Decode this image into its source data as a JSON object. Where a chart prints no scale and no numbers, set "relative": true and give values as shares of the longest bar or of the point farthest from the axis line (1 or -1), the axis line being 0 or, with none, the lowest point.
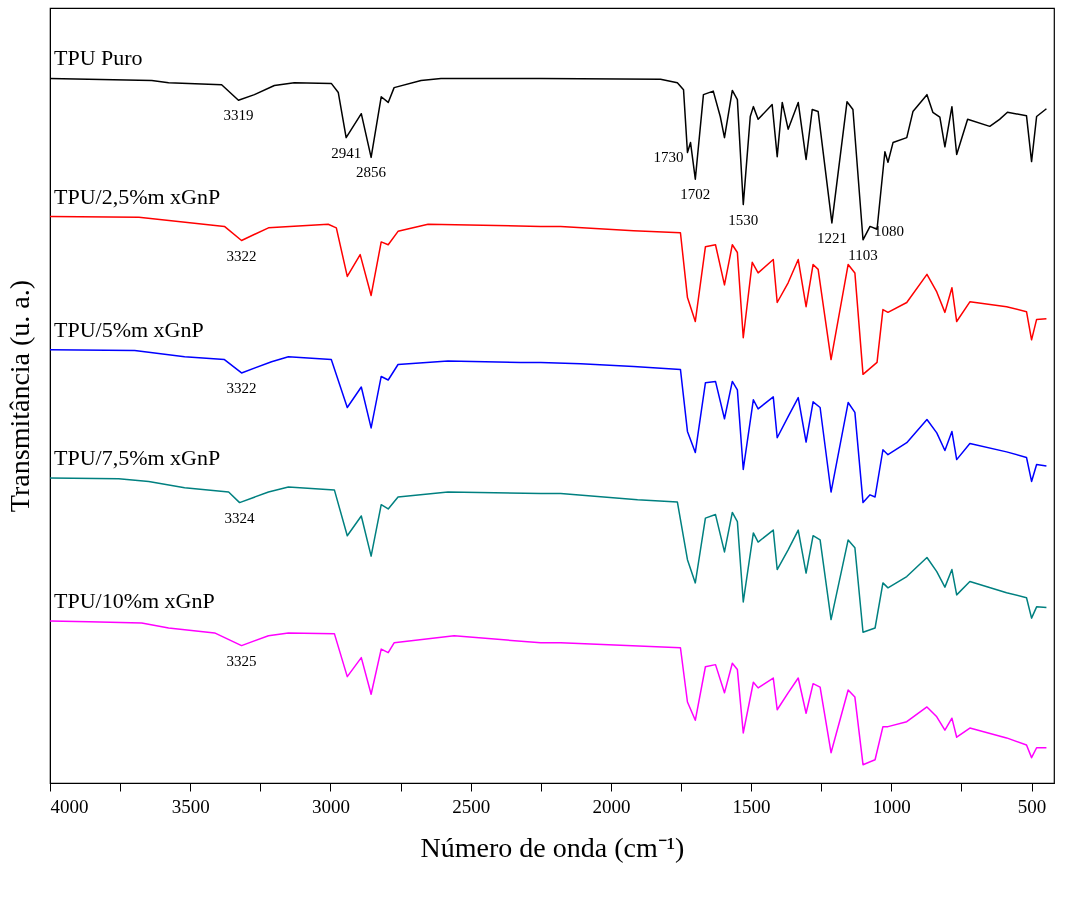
{
  "chart_data": {
    "type": "line",
    "relative": true,
    "xlabel": "Número de onda (cm⁻¹)",
    "ylabel": "Transmitância (u. a.)",
    "xlim": [
      4000,
      420
    ],
    "xticks": [
      4000,
      {
        "value": 3750,
        "label": null
      },
      3500,
      {
        "value": 3250,
        "label": null
      },
      3000,
      {
        "value": 2750,
        "label": null
      },
      2500,
      {
        "value": 2250,
        "label": null
      },
      2000,
      {
        "value": 1750,
        "label": null
      },
      1500,
      {
        "value": 1250,
        "label": null
      },
      1000,
      {
        "value": 750,
        "label": null
      },
      500
    ],
    "series": [
      {
        "name": "TPU Puro",
        "color": "#000000",
        "x": [
          4000,
          3637,
          3577,
          3388,
          3328,
          3271,
          3200,
          3129,
          2997,
          2972,
          2944,
          2890,
          2855,
          2819,
          2794,
          2773,
          2677,
          2606,
          2250,
          1823,
          1763,
          1741,
          1727,
          1716,
          1699,
          1670,
          1635,
          1610,
          1595,
          1567,
          1549,
          1528,
          1503,
          1492,
          1475,
          1425,
          1407,
          1389,
          1368,
          1332,
          1304,
          1282,
          1261,
          1212,
          1158,
          1137,
          1101,
          1076,
          1051,
          1023,
          1012,
          994,
          945,
          923,
          873,
          852,
          827,
          809,
          784,
          767,
          728,
          649,
          614,
          586,
          518,
          500,
          482,
          447
        ],
        "values": [
          1.0,
          0.997,
          0.994,
          0.991,
          0.969,
          0.977,
          0.99,
          0.994,
          0.993,
          0.98,
          0.916,
          0.95,
          0.888,
          0.974,
          0.966,
          0.987,
          0.997,
          1.0,
          1.0,
          0.999,
          0.994,
          0.984,
          0.895,
          0.909,
          0.857,
          0.977,
          0.982,
          0.946,
          0.916,
          0.983,
          0.97,
          0.821,
          0.946,
          0.96,
          0.942,
          0.963,
          0.889,
          0.966,
          0.928,
          0.966,
          0.885,
          0.956,
          0.953,
          0.795,
          0.967,
          0.956,
          0.771,
          0.79,
          0.786,
          0.896,
          0.881,
          0.909,
          0.916,
          0.953,
          0.977,
          0.952,
          0.945,
          0.903,
          0.96,
          0.892,
          0.942,
          0.932,
          0.942,
          0.952,
          0.947,
          0.882,
          0.946,
          0.957
        ]
      },
      {
        "name": "TPU/2,5%m xGnP",
        "color": "#ff0000",
        "x": [
          4000,
          3683,
          3378,
          3317,
          3221,
          3008,
          2979,
          2940,
          2894,
          2855,
          2819,
          2794,
          2759,
          2652,
          2250,
          2179,
          1919,
          1752,
          1727,
          1699,
          1663,
          1627,
          1595,
          1567,
          1549,
          1528,
          1496,
          1475,
          1421,
          1407,
          1368,
          1332,
          1304,
          1279,
          1261,
          1215,
          1154,
          1130,
          1101,
          1051,
          1030,
          1012,
          945,
          873,
          838,
          809,
          784,
          767,
          720,
          589,
          518,
          500,
          482,
          447
        ],
        "values": [
          0.804,
          0.803,
          0.79,
          0.77,
          0.788,
          0.793,
          0.788,
          0.719,
          0.75,
          0.692,
          0.768,
          0.764,
          0.783,
          0.793,
          0.79,
          0.79,
          0.784,
          0.781,
          0.689,
          0.655,
          0.761,
          0.764,
          0.707,
          0.764,
          0.753,
          0.632,
          0.739,
          0.724,
          0.743,
          0.682,
          0.71,
          0.743,
          0.676,
          0.736,
          0.729,
          0.601,
          0.736,
          0.724,
          0.58,
          0.597,
          0.672,
          0.668,
          0.682,
          0.722,
          0.697,
          0.668,
          0.703,
          0.655,
          0.683,
          0.676,
          0.669,
          0.629,
          0.658,
          0.659
        ]
      },
      {
        "name": "TPU/5%m xGnP",
        "color": "#0000ff",
        "x": [
          4000,
          3698,
          3520,
          3378,
          3317,
          3210,
          3150,
          2997,
          2940,
          2890,
          2855,
          2819,
          2794,
          2759,
          2581,
          2321,
          2250,
          2108,
          1919,
          1752,
          1727,
          1699,
          1663,
          1627,
          1595,
          1567,
          1549,
          1528,
          1492,
          1475,
          1421,
          1407,
          1368,
          1332,
          1304,
          1279,
          1254,
          1215,
          1154,
          1130,
          1101,
          1076,
          1058,
          1030,
          1012,
          945,
          873,
          838,
          809,
          784,
          767,
          720,
          589,
          518,
          500,
          482,
          447
        ],
        "values": [
          0.615,
          0.614,
          0.605,
          0.601,
          0.582,
          0.598,
          0.605,
          0.601,
          0.533,
          0.562,
          0.504,
          0.577,
          0.572,
          0.594,
          0.599,
          0.597,
          0.597,
          0.595,
          0.591,
          0.587,
          0.499,
          0.469,
          0.568,
          0.57,
          0.517,
          0.57,
          0.558,
          0.445,
          0.544,
          0.531,
          0.548,
          0.49,
          0.52,
          0.547,
          0.484,
          0.541,
          0.533,
          0.413,
          0.54,
          0.526,
          0.398,
          0.409,
          0.406,
          0.473,
          0.466,
          0.483,
          0.516,
          0.497,
          0.472,
          0.499,
          0.459,
          0.482,
          0.47,
          0.462,
          0.428,
          0.452,
          0.45
        ]
      },
      {
        "name": "TPU/7,5%m xGnP",
        "color": "#008080",
        "x": [
          4000,
          3755,
          3648,
          3520,
          3363,
          3324,
          3221,
          3150,
          2986,
          2940,
          2890,
          2855,
          2819,
          2794,
          2759,
          2581,
          2250,
          2179,
          1905,
          1763,
          1727,
          1699,
          1663,
          1627,
          1595,
          1567,
          1549,
          1528,
          1492,
          1475,
          1421,
          1407,
          1368,
          1332,
          1304,
          1279,
          1254,
          1215,
          1154,
          1130,
          1101,
          1058,
          1030,
          1012,
          945,
          873,
          838,
          809,
          784,
          767,
          720,
          589,
          518,
          500,
          482,
          447
        ],
        "values": [
          0.433,
          0.432,
          0.428,
          0.419,
          0.413,
          0.398,
          0.413,
          0.42,
          0.416,
          0.351,
          0.379,
          0.322,
          0.395,
          0.389,
          0.406,
          0.413,
          0.411,
          0.411,
          0.402,
          0.399,
          0.317,
          0.284,
          0.376,
          0.381,
          0.328,
          0.384,
          0.371,
          0.257,
          0.355,
          0.342,
          0.359,
          0.303,
          0.331,
          0.359,
          0.298,
          0.351,
          0.345,
          0.232,
          0.345,
          0.334,
          0.214,
          0.22,
          0.284,
          0.277,
          0.293,
          0.32,
          0.3,
          0.278,
          0.303,
          0.267,
          0.286,
          0.27,
          0.263,
          0.234,
          0.25,
          0.249
        ]
      },
      {
        "name": "TPU/10%m xGnP",
        "color": "#ff00ff",
        "x": [
          4000,
          3861,
          3673,
          3577,
          3413,
          3317,
          3221,
          3150,
          2986,
          2940,
          2890,
          2855,
          2819,
          2794,
          2773,
          2559,
          2250,
          2179,
          1752,
          1727,
          1699,
          1663,
          1627,
          1595,
          1567,
          1549,
          1528,
          1492,
          1475,
          1421,
          1407,
          1368,
          1332,
          1304,
          1279,
          1254,
          1215,
          1154,
          1130,
          1101,
          1058,
          1030,
          1012,
          945,
          873,
          838,
          809,
          784,
          767,
          720,
          589,
          518,
          500,
          482,
          447
        ],
        "values": [
          0.23,
          0.229,
          0.227,
          0.22,
          0.213,
          0.195,
          0.209,
          0.213,
          0.212,
          0.151,
          0.178,
          0.126,
          0.19,
          0.185,
          0.199,
          0.209,
          0.199,
          0.199,
          0.192,
          0.115,
          0.089,
          0.165,
          0.168,
          0.128,
          0.17,
          0.161,
          0.071,
          0.143,
          0.135,
          0.149,
          0.104,
          0.128,
          0.149,
          0.099,
          0.141,
          0.136,
          0.043,
          0.132,
          0.122,
          0.026,
          0.033,
          0.08,
          0.08,
          0.087,
          0.108,
          0.094,
          0.075,
          0.092,
          0.065,
          0.078,
          0.064,
          0.054,
          0.036,
          0.05,
          0.05
        ]
      }
    ],
    "annotations": [
      {
        "text": "3319",
        "x": 3328,
        "y": 0.969
      },
      {
        "text": "2941",
        "x": 2944,
        "y": 0.916
      },
      {
        "text": "2856",
        "x": 2855,
        "y": 0.888
      },
      {
        "text": "1730",
        "x": 1727,
        "y": 0.895
      },
      {
        "text": "1702",
        "x": 1699,
        "y": 0.857
      },
      {
        "text": "1530",
        "x": 1528,
        "y": 0.821
      },
      {
        "text": "1221",
        "x": 1212,
        "y": 0.795
      },
      {
        "text": "1103",
        "x": 1101,
        "y": 0.771
      },
      {
        "text": "1080",
        "x": 1076,
        "y": 0.79
      },
      {
        "text": "3322",
        "x": 3317,
        "y": 0.77
      },
      {
        "text": "3322",
        "x": 3317,
        "y": 0.582
      },
      {
        "text": "3324",
        "x": 3324,
        "y": 0.398
      },
      {
        "text": "3325",
        "x": 3317,
        "y": 0.195
      }
    ]
  }
}
